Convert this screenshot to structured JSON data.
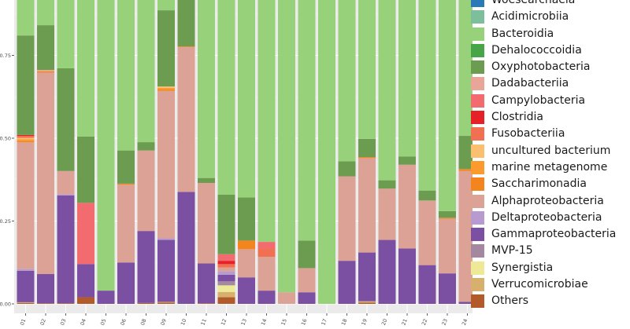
{
  "chart_data": {
    "type": "bar",
    "stacked": true,
    "title": "",
    "xlabel": "",
    "ylabel": "",
    "ylim": [
      0,
      1
    ],
    "yticks": [
      "0.00",
      "0.25",
      "0.50",
      "0.75"
    ],
    "ytick_values": [
      0,
      0.25,
      0.5,
      0.75
    ],
    "grid": true,
    "legend_position": "right",
    "categories": [
      "01",
      "02",
      "03",
      "04",
      "05",
      "06",
      "08",
      "09",
      "10",
      "11",
      "12",
      "13",
      "14",
      "15",
      "16",
      "17",
      "18",
      "19",
      "20",
      "21",
      "22",
      "23",
      "24"
    ],
    "series": [
      {
        "name": "Others",
        "color": "#b35a2a",
        "values": [
          0.003,
          0.002,
          0.002,
          0.02,
          0,
          0,
          0.003,
          0.004,
          0,
          0.002,
          0.02,
          0,
          0,
          0,
          0,
          0,
          0,
          0.004,
          0,
          0,
          0,
          0,
          0
        ]
      },
      {
        "name": "Verrucomicrobiae",
        "color": "#d7b06d",
        "values": [
          0.002,
          0,
          0,
          0,
          0,
          0,
          0,
          0.002,
          0,
          0,
          0.016,
          0,
          0,
          0,
          0,
          0,
          0,
          0.004,
          0,
          0,
          0,
          0,
          0
        ]
      },
      {
        "name": "Synergistia",
        "color": "#eee997",
        "values": [
          0,
          0,
          0,
          0,
          0,
          0,
          0,
          0,
          0,
          0,
          0.02,
          0,
          0,
          0,
          0,
          0,
          0,
          0,
          0,
          0,
          0,
          0,
          0
        ]
      },
      {
        "name": "MVP-15",
        "color": "#a388a0",
        "values": [
          0,
          0,
          0,
          0,
          0,
          0,
          0,
          0,
          0,
          0,
          0.012,
          0,
          0,
          0,
          0,
          0,
          0,
          0,
          0,
          0,
          0,
          0,
          0
        ]
      },
      {
        "name": "Gammaproteobacteria",
        "color": "#7b4fa2",
        "values": [
          0.095,
          0.088,
          0.325,
          0.1,
          0.04,
          0.125,
          0.217,
          0.187,
          0.338,
          0.12,
          0.02,
          0.08,
          0.04,
          0,
          0.035,
          0,
          0.13,
          0.147,
          0.193,
          0.167,
          0.117,
          0.092,
          0.006
        ]
      },
      {
        "name": "Deltaproteobacteria",
        "color": "#b69ad0",
        "values": [
          0.005,
          0,
          0.004,
          0,
          0,
          0,
          0,
          0.005,
          0,
          0,
          0.01,
          0,
          0,
          0,
          0,
          0,
          0,
          0,
          0,
          0,
          0,
          0,
          0
        ]
      },
      {
        "name": "Alphaproteobacteria",
        "color": "#dba295",
        "values": [
          0.383,
          0.608,
          0.07,
          0,
          0,
          0.235,
          0.243,
          0.445,
          0.437,
          0.243,
          0.012,
          0.085,
          0.102,
          0.035,
          0.073,
          0,
          0.255,
          0.285,
          0.155,
          0.253,
          0.195,
          0.165,
          0.395
        ]
      },
      {
        "name": "Saccharimonadia",
        "color": "#f4851e",
        "values": [
          0.004,
          0.004,
          0,
          0,
          0,
          0.003,
          0,
          0.004,
          0.002,
          0,
          0,
          0.026,
          0,
          0,
          0,
          0,
          0,
          0.003,
          0,
          0,
          0,
          0.003,
          0.006
        ]
      },
      {
        "name": "marine metagenome",
        "color": "#fd9a2e",
        "values": [
          0.005,
          0,
          0,
          0,
          0,
          0,
          0,
          0.005,
          0,
          0,
          0,
          0,
          0,
          0,
          0,
          0,
          0,
          0,
          0,
          0,
          0,
          0,
          0
        ]
      },
      {
        "name": "uncultured bacterium",
        "color": "#fbbf70",
        "values": [
          0.004,
          0,
          0,
          0,
          0,
          0,
          0,
          0.004,
          0,
          0,
          0,
          0,
          0,
          0,
          0,
          0,
          0,
          0,
          0,
          0,
          0,
          0,
          0
        ]
      },
      {
        "name": "Fusobacteriia",
        "color": "#f07051",
        "values": [
          0.006,
          0,
          0,
          0,
          0,
          0,
          0,
          0,
          0,
          0,
          0.01,
          0,
          0.025,
          0,
          0,
          0,
          0,
          0,
          0,
          0,
          0,
          0,
          0
        ]
      },
      {
        "name": "Clostridia",
        "color": "#e52027",
        "values": [
          0.003,
          0,
          0,
          0,
          0,
          0,
          0,
          0,
          0,
          0,
          0.01,
          0,
          0,
          0,
          0,
          0,
          0,
          0,
          0,
          0,
          0,
          0,
          0
        ]
      },
      {
        "name": "Campylobacteria",
        "color": "#f26b6f",
        "values": [
          0,
          0,
          0,
          0.185,
          0,
          0,
          0,
          0,
          0,
          0,
          0.02,
          0,
          0.02,
          0,
          0,
          0,
          0,
          0,
          0,
          0,
          0,
          0,
          0
        ]
      },
      {
        "name": "Dadabacteriia",
        "color": "#e9a598",
        "values": [
          0,
          0.004,
          0,
          0,
          0,
          0,
          0,
          0,
          0,
          0,
          0,
          0,
          0,
          0,
          0,
          0,
          0,
          0,
          0,
          0,
          0,
          0,
          0
        ]
      },
      {
        "name": "Oxyphotobacteria",
        "color": "#6b9c4f",
        "values": [
          0.3,
          0.135,
          0.31,
          0.2,
          0,
          0.1,
          0.025,
          0.23,
          0.22,
          0.015,
          0.18,
          0.13,
          0,
          0,
          0.083,
          0,
          0.045,
          0.055,
          0.025,
          0.025,
          0.03,
          0.02,
          0.1
        ]
      },
      {
        "name": "Dehalococcoidia",
        "color": "#47a447",
        "values": [
          0,
          0,
          0,
          0,
          0,
          0,
          0,
          0,
          0,
          0,
          0,
          0,
          0,
          0,
          0,
          0,
          0,
          0,
          0,
          0,
          0,
          0,
          0
        ]
      },
      {
        "name": "Bacteroidia",
        "color": "#97d27b",
        "values": [
          0.19,
          0.159,
          0.289,
          0.495,
          0.96,
          0.537,
          0.512,
          0.114,
          0.003,
          0.62,
          0.65,
          0.679,
          0.813,
          0.965,
          0.809,
          1.0,
          0.57,
          0.502,
          0.627,
          0.555,
          0.658,
          0.72,
          0.493
        ]
      },
      {
        "name": "Acidimicrobiia",
        "color": "#7dbf9d",
        "values": [
          0,
          0,
          0,
          0,
          0,
          0,
          0,
          0,
          0,
          0,
          0,
          0,
          0,
          0,
          0,
          0,
          0,
          0,
          0,
          0,
          0,
          0,
          0
        ]
      },
      {
        "name": "Woesearchaeia",
        "color": "#2a7ab8",
        "values": [
          0,
          0,
          0,
          0,
          0,
          0,
          0,
          0,
          0,
          0,
          0.01,
          0,
          0,
          0,
          0,
          0,
          0,
          0,
          0,
          0,
          0,
          0,
          0
        ]
      },
      {
        "name": "",
        "color": "#a6cde4",
        "values": [
          0,
          0,
          0,
          0,
          0,
          0,
          0,
          0,
          0,
          0,
          0.08,
          0,
          0,
          0,
          0,
          0,
          0,
          0,
          0,
          0,
          0,
          0,
          0
        ]
      }
    ],
    "legend_order": [
      "Woesearchaeia",
      "Acidimicrobiia",
      "Bacteroidia",
      "Dehalococcoidia",
      "Oxyphotobacteria",
      "Dadabacteriia",
      "Campylobacteria",
      "Clostridia",
      "Fusobacteriia",
      "uncultured bacterium",
      "marine metagenome",
      "Saccharimonadia",
      "Alphaproteobacteria",
      "Deltaproteobacteria",
      "Gammaproteobacteria",
      "MVP-15",
      "Synergistia",
      "Verrucomicrobiae",
      "Others"
    ]
  }
}
